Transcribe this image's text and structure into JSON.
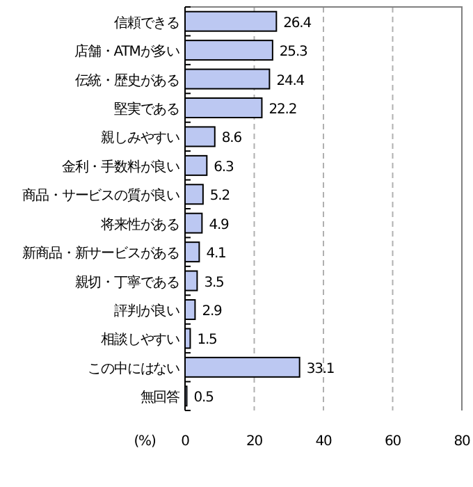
{
  "chart_data": {
    "type": "bar",
    "orientation": "horizontal",
    "xlabel": "(%)",
    "categories": [
      "信頼できる",
      "店舗・ATMが多い",
      "伝統・歴史がある",
      "堅実である",
      "親しみやすい",
      "金利・手数料が良い",
      "商品・サービスの質が良い",
      "将来性がある",
      "新商品・新サービスがある",
      "親切・丁寧である",
      "評判が良い",
      "相談しやすい",
      "この中にはない",
      "無回答"
    ],
    "values": [
      26.4,
      25.3,
      24.4,
      22.2,
      8.6,
      6.3,
      5.2,
      4.9,
      4.1,
      3.5,
      2.9,
      1.5,
      33.1,
      0.5
    ],
    "color": "#bcc8f2",
    "data_labels": true,
    "xlim": [
      0,
      80
    ],
    "xticks": [
      0,
      20,
      40,
      60,
      80
    ],
    "grid": "x"
  }
}
